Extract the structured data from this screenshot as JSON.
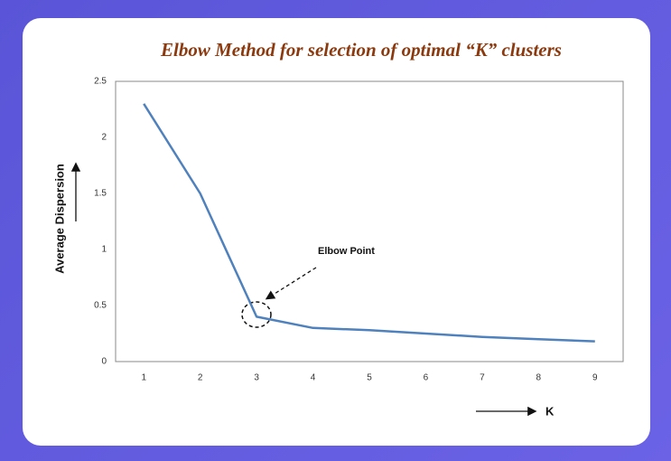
{
  "chart_data": {
    "type": "line",
    "title": "Elbow Method for selection of  optimal “K” clusters",
    "y_label": "Average Dispersion",
    "x_label": "K",
    "annotation": "Elbow Point",
    "x": [
      1,
      2,
      3,
      4,
      5,
      6,
      7,
      8,
      9
    ],
    "values": [
      2.3,
      1.5,
      0.4,
      0.3,
      0.28,
      0.25,
      0.22,
      0.2,
      0.18
    ],
    "color": "#4f81bd",
    "xlim": [
      0.5,
      9.5
    ],
    "xticks": [
      1,
      2,
      3,
      4,
      5,
      6,
      7,
      8,
      9
    ],
    "ylim": [
      0,
      2.5
    ],
    "yticks": [
      0,
      0.5,
      1,
      1.5,
      2,
      2.5
    ],
    "grid": false
  }
}
